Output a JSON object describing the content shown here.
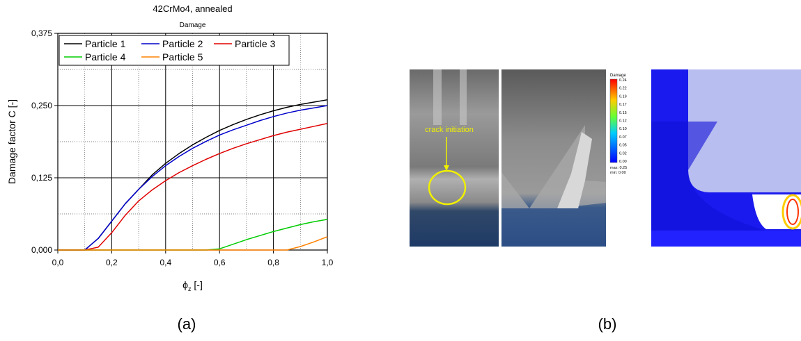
{
  "chart_data": {
    "type": "line",
    "title": "42CrMo4, annealed",
    "subtitle": "Damage",
    "y_label": "Damage factor C [-]",
    "x_label": {
      "base": "ϕ",
      "sub": "z",
      "rest": " [-]"
    },
    "x": [
      0,
      0.05,
      0.1,
      0.15,
      0.2,
      0.25,
      0.3,
      0.35,
      0.4,
      0.45,
      0.5,
      0.55,
      0.6,
      0.65,
      0.7,
      0.75,
      0.8,
      0.85,
      0.9,
      0.95,
      1.0
    ],
    "series": [
      {
        "name": "Particle 1",
        "color": "#000000",
        "values": [
          0,
          0,
          0,
          0.02,
          0.05,
          0.08,
          0.105,
          0.13,
          0.15,
          0.167,
          0.182,
          0.195,
          0.207,
          0.217,
          0.226,
          0.234,
          0.241,
          0.247,
          0.252,
          0.256,
          0.26
        ]
      },
      {
        "name": "Particle 2",
        "color": "#0000cc",
        "values": [
          0,
          0,
          0,
          0.02,
          0.05,
          0.08,
          0.105,
          0.127,
          0.146,
          0.162,
          0.176,
          0.188,
          0.199,
          0.208,
          0.216,
          0.224,
          0.231,
          0.237,
          0.242,
          0.246,
          0.25
        ]
      },
      {
        "name": "Particle 3",
        "color": "#e00000",
        "values": [
          0,
          0,
          0,
          0.005,
          0.03,
          0.06,
          0.085,
          0.104,
          0.12,
          0.134,
          0.146,
          0.157,
          0.167,
          0.176,
          0.184,
          0.191,
          0.198,
          0.204,
          0.209,
          0.214,
          0.219
        ]
      },
      {
        "name": "Particle 4",
        "color": "#00cc00",
        "values": [
          0,
          0,
          0,
          0,
          0,
          0,
          0,
          0,
          0,
          0,
          0,
          0,
          0.002,
          0.01,
          0.018,
          0.025,
          0.032,
          0.038,
          0.044,
          0.049,
          0.053
        ]
      },
      {
        "name": "Particle 5",
        "color": "#ff8000",
        "values": [
          0,
          0,
          0,
          0,
          0,
          0,
          0,
          0,
          0,
          0,
          0,
          0,
          0,
          0,
          0,
          0,
          0,
          0,
          0.006,
          0.014,
          0.023
        ]
      }
    ],
    "xlim": [
      0,
      1.0
    ],
    "ylim": [
      0,
      0.375
    ],
    "xticks": [
      {
        "value": 0,
        "label": "0,0"
      },
      {
        "value": 0.2,
        "label": "0,2"
      },
      {
        "value": 0.4,
        "label": "0,4"
      },
      {
        "value": 0.6,
        "label": "0,6"
      },
      {
        "value": 0.8,
        "label": "0,8"
      },
      {
        "value": 1.0,
        "label": "1,0"
      }
    ],
    "yticks": [
      {
        "value": 0,
        "label": "0,000"
      },
      {
        "value": 0.125,
        "label": "0,125"
      },
      {
        "value": 0.25,
        "label": "0,250"
      },
      {
        "value": 0.375,
        "label": "0,375"
      }
    ],
    "minor_xticks": [
      0.1,
      0.3,
      0.5,
      0.7,
      0.9
    ],
    "minor_yticks": [
      0.0625,
      0.1875,
      0.3125
    ],
    "grid": true,
    "legend": "upper left"
  },
  "panel_b": {
    "annotation": "crack initiation",
    "colorbar": {
      "title": "Damage",
      "labels": [
        "0.24",
        "0.22",
        "0.19",
        "0.17",
        "0.15",
        "0.12",
        "0.10",
        "0.07",
        "0.05",
        "0.02",
        "0.00"
      ],
      "max": "max: 0.25",
      "min": "min: 0.00"
    }
  },
  "captions": [
    "(a)",
    "(b)"
  ]
}
